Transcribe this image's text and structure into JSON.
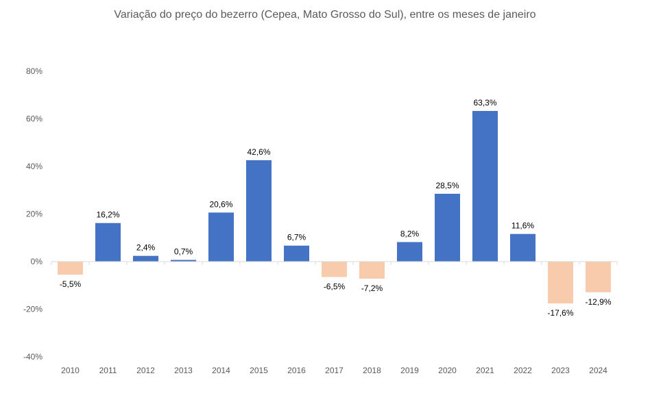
{
  "chart_data": {
    "type": "bar",
    "title": "Variação do preço do bezerro (Cepea, Mato Grosso do Sul), entre os meses de janeiro",
    "xlabel": "",
    "ylabel": "",
    "categories": [
      "2010",
      "2011",
      "2012",
      "2013",
      "2014",
      "2015",
      "2016",
      "2017",
      "2018",
      "2019",
      "2020",
      "2021",
      "2022",
      "2023",
      "2024"
    ],
    "values": [
      -5.5,
      16.2,
      2.4,
      0.7,
      20.6,
      42.6,
      6.7,
      -6.5,
      -7.2,
      8.2,
      28.5,
      63.3,
      11.6,
      -17.6,
      -12.9
    ],
    "data_labels": [
      "-5,5%",
      "16,2%",
      "2,4%",
      "0,7%",
      "20,6%",
      "42,6%",
      "6,7%",
      "-6,5%",
      "-7,2%",
      "8,2%",
      "28,5%",
      "63,3%",
      "11,6%",
      "-17,6%",
      "-12,9%"
    ],
    "ylim": [
      -40,
      80
    ],
    "yticks": [
      -40,
      -20,
      0,
      20,
      40,
      60,
      80
    ],
    "ytick_labels": [
      "-40%",
      "-20%",
      "0%",
      "20%",
      "40%",
      "60%",
      "80%"
    ],
    "grid": false,
    "legend": "none",
    "colors": {
      "positive": "#4472C4",
      "negative": "#F8CBAD",
      "axis": "#D9D9D9"
    }
  }
}
